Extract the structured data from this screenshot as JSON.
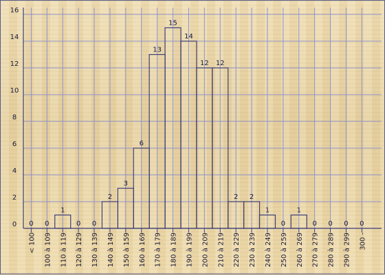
{
  "chart_data": {
    "type": "bar",
    "title": "",
    "xlabel": "",
    "ylabel": "",
    "ylim": [
      0,
      16
    ],
    "yticks": [
      0,
      2,
      4,
      6,
      8,
      10,
      12,
      14,
      16
    ],
    "grid": true,
    "categories": [
      "< 100",
      "100 à 109",
      "110 à 119",
      "120 à 129",
      "130 à 139",
      "140 à 149",
      "150 à 159",
      "160 à 169",
      "170 à 179",
      "180 à 189",
      "190 à 199",
      "200 à 209",
      "210 à 219",
      "220 à 229",
      "230 à 239",
      "240 à 249",
      "250 à 259",
      "260 à 269",
      "270 à 279",
      "280 à 289",
      "290 à 299",
      "300 -"
    ],
    "values": [
      0,
      0,
      1,
      0,
      0,
      2,
      3,
      6,
      13,
      15,
      14,
      12,
      12,
      2,
      2,
      1,
      0,
      1,
      0,
      0,
      0,
      0
    ]
  },
  "colors": {
    "grid": "#8f93c8",
    "axis": "#3c3f7a",
    "text": "#1a1a3a"
  }
}
